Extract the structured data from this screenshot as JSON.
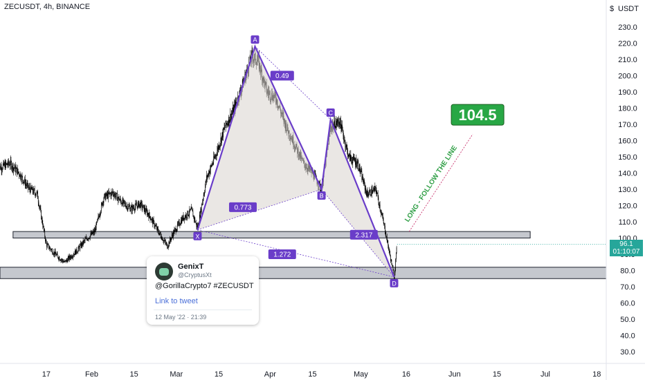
{
  "header": {
    "title": "ZECUSDT, 4h, BINANCE"
  },
  "chart_data": {
    "type": "candlestick",
    "symbol": "ZECUSDT",
    "timeframe": "4h",
    "exchange": "BINANCE",
    "currency_label": "USDT",
    "x_ticks": [
      "17",
      "Feb",
      "15",
      "Mar",
      "15",
      "Apr",
      "15",
      "May",
      "16",
      "Jun",
      "15",
      "Jul",
      "18"
    ],
    "y_ticks": [
      "30.0",
      "40.0",
      "50.0",
      "60.0",
      "70.0",
      "80.0",
      "90.0",
      "100.0",
      "110.0",
      "120.0",
      "130.0",
      "140.0",
      "150.0",
      "160.0",
      "170.0",
      "180.0",
      "190.0",
      "200.0",
      "210.0",
      "220.0",
      "230.0"
    ],
    "ylim": [
      24,
      233
    ],
    "price_path": [
      [
        "2022-01-01",
        143
      ],
      [
        "2022-01-05",
        146
      ],
      [
        "2022-01-08",
        140
      ],
      [
        "2022-01-11",
        131
      ],
      [
        "2022-01-14",
        127
      ],
      [
        "2022-01-17",
        96
      ],
      [
        "2022-01-20",
        90
      ],
      [
        "2022-01-23",
        85
      ],
      [
        "2022-01-27",
        92
      ],
      [
        "2022-01-30",
        99
      ],
      [
        "2022-02-02",
        104
      ],
      [
        "2022-02-05",
        125
      ],
      [
        "2022-02-08",
        128
      ],
      [
        "2022-02-11",
        122
      ],
      [
        "2022-02-14",
        118
      ],
      [
        "2022-02-17",
        121
      ],
      [
        "2022-02-20",
        114
      ],
      [
        "2022-02-23",
        104
      ],
      [
        "2022-02-26",
        95
      ],
      [
        "2022-02-28",
        103
      ],
      [
        "2022-03-03",
        112
      ],
      [
        "2022-03-06",
        117
      ],
      [
        "2022-03-08",
        106
      ],
      [
        "2022-03-11",
        137
      ],
      [
        "2022-03-14",
        151
      ],
      [
        "2022-03-17",
        168
      ],
      [
        "2022-03-20",
        179
      ],
      [
        "2022-03-23",
        195
      ],
      [
        "2022-03-26",
        212
      ],
      [
        "2022-03-28",
        209
      ],
      [
        "2022-03-31",
        190
      ],
      [
        "2022-04-03",
        186
      ],
      [
        "2022-04-06",
        170
      ],
      [
        "2022-04-09",
        158
      ],
      [
        "2022-04-12",
        146
      ],
      [
        "2022-04-15",
        140
      ],
      [
        "2022-04-18",
        130
      ],
      [
        "2022-04-21",
        168
      ],
      [
        "2022-04-24",
        172
      ],
      [
        "2022-04-27",
        150
      ],
      [
        "2022-04-30",
        146
      ],
      [
        "2022-05-03",
        127
      ],
      [
        "2022-05-06",
        130
      ],
      [
        "2022-05-09",
        105
      ],
      [
        "2022-05-12",
        76
      ],
      [
        "2022-05-13",
        96.1
      ]
    ],
    "last_price": "96.1",
    "countdown": "01:10:07",
    "pattern": {
      "points": [
        {
          "label": "X",
          "date": "2022-03-08",
          "price": 105
        },
        {
          "label": "A",
          "date": "2022-03-27",
          "price": 218
        },
        {
          "label": "B",
          "date": "2022-04-18",
          "price": 130
        },
        {
          "label": "C",
          "date": "2022-04-21",
          "price": 173
        },
        {
          "label": "D",
          "date": "2022-05-12",
          "price": 76
        }
      ],
      "ratios": [
        {
          "value": "0.49",
          "date": "2022-04-05",
          "price": 200
        },
        {
          "value": "0.773",
          "date": "2022-03-23",
          "price": 119
        },
        {
          "value": "2.317",
          "date": "2022-05-02",
          "price": 102
        },
        {
          "value": "1.272",
          "date": "2022-04-05",
          "price": 90
        }
      ]
    },
    "zones": [
      {
        "from": "2022-01-06",
        "to": "2022-06-26",
        "low": 100,
        "high": 104
      },
      {
        "from": "2021-12-15",
        "to": "2022-07-31",
        "low": 75,
        "high": 82
      }
    ],
    "projection": {
      "from_date": "2022-05-17",
      "from_price": 104,
      "to_date": "2022-06-07",
      "to_price": 164
    },
    "annotations": {
      "target": "104.5",
      "follow_text": "LONG - FOLLOW THE LINE"
    },
    "colors": {
      "candle": "#000000",
      "pattern_line": "#6a3dc9",
      "pattern_fill": "#d9d4ce",
      "label_bg": "#6a3dc9",
      "target_bg": "#28a745",
      "follow_text": "#2e9e44",
      "zone_fill": "#b2b5be",
      "last_price_bg": "#26a69a"
    }
  },
  "tweet": {
    "name": "GenixT",
    "handle": "@CryptusXt",
    "text": "@GorillaCrypto7 #ZECUSDT",
    "link": "Link to tweet",
    "date": "12 May '22 · 21:39"
  }
}
